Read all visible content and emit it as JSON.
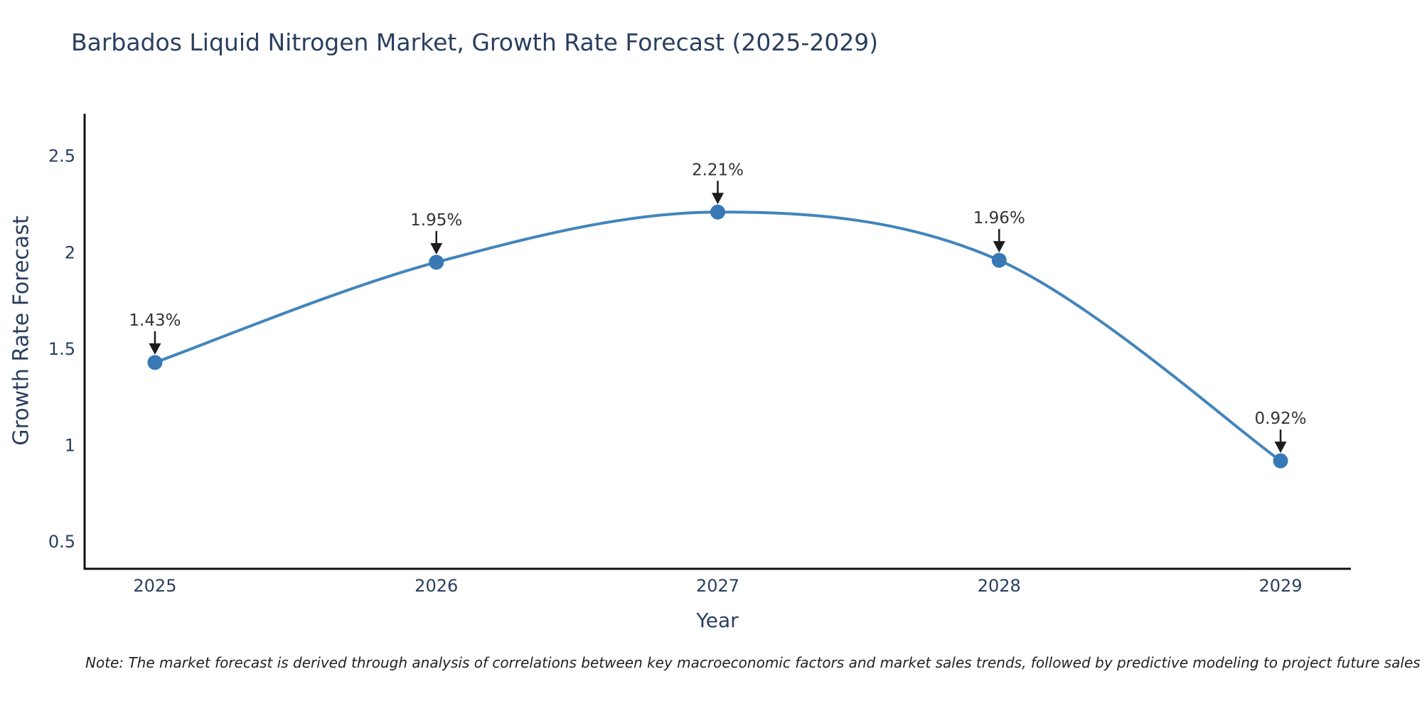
{
  "chart_data": {
    "type": "line",
    "title": "Barbados Liquid Nitrogen Market, Growth Rate Forecast (2025-2029)",
    "xlabel": "Year",
    "ylabel": "Growth Rate Forecast",
    "x": [
      2025,
      2026,
      2027,
      2028,
      2029
    ],
    "values": [
      1.43,
      1.95,
      2.21,
      1.96,
      0.92
    ],
    "point_labels": [
      "1.43%",
      "1.95%",
      "2.21%",
      "1.96%",
      "0.92%"
    ],
    "xtick_labels": [
      "2025",
      "2026",
      "2027",
      "2028",
      "2029"
    ],
    "yticks": [
      0.5,
      1,
      1.5,
      2,
      2.5
    ],
    "ytick_labels": [
      "0.5",
      "1",
      "1.5",
      "2",
      "2.5"
    ],
    "xlim": [
      2024.75,
      2029.25
    ],
    "ylim": [
      0.36,
      2.72
    ],
    "grid": false,
    "legend": false,
    "line_shape": "spline",
    "line_color": "#4285bb",
    "marker_color": "#3878b4",
    "axis_color": "#111111",
    "arrow_color": "#1c1c1c"
  },
  "note": {
    "text": "Note: The market forecast is derived through analysis of correlations between key macroeconomic factors and market sales trends, followed by predictive modeling to project future sales"
  }
}
